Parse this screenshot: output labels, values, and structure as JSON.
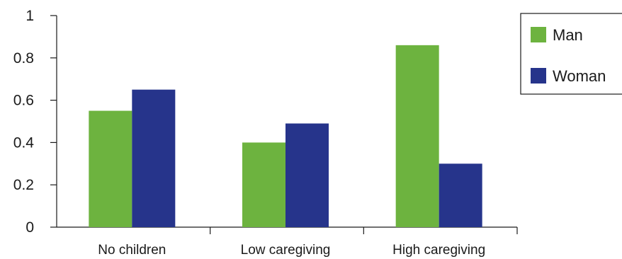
{
  "chart_data": {
    "type": "bar",
    "categories": [
      "No children",
      "Low caregiving",
      "High caregiving"
    ],
    "series": [
      {
        "name": "Man",
        "values": [
          0.55,
          0.4,
          0.86
        ],
        "color": "#6db33f"
      },
      {
        "name": "Woman",
        "values": [
          0.65,
          0.49,
          0.3
        ],
        "color": "#26348b"
      }
    ],
    "yticks": [
      "0",
      "0.2",
      "0.4",
      "0.6",
      "0.8",
      "1"
    ],
    "ylim": [
      0,
      1
    ],
    "grid": false,
    "legend_position": "top-right"
  }
}
